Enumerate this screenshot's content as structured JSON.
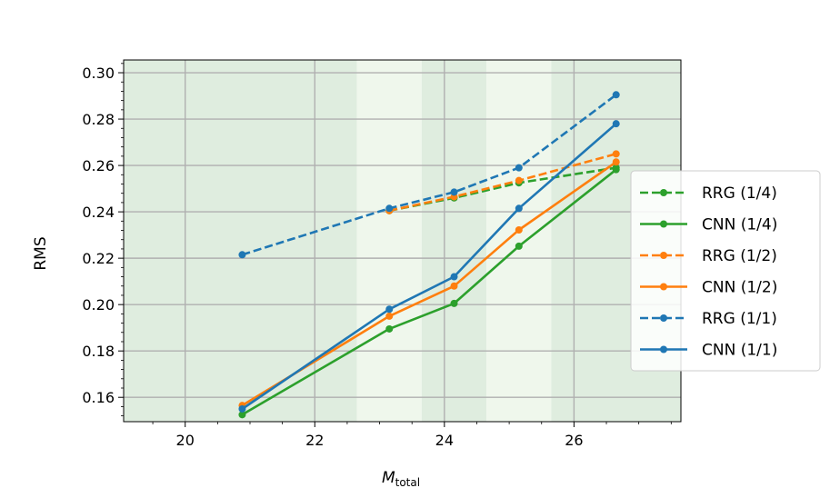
{
  "chart_data": {
    "type": "line",
    "title": "",
    "xlabel": "M",
    "xlabel_sub": "total",
    "ylabel": "RMS",
    "xlim": [
      19.05,
      27.65
    ],
    "ylim": [
      0.1495,
      0.3055
    ],
    "xticks": [
      20,
      22,
      24,
      26
    ],
    "yticks": [
      0.16,
      0.18,
      0.2,
      0.22,
      0.24,
      0.26,
      0.28,
      0.3
    ],
    "ytick_labels": [
      "0.16",
      "0.18",
      "0.20",
      "0.22",
      "0.24",
      "0.26",
      "0.28",
      "0.30"
    ],
    "grid": true,
    "legend_position": "right",
    "background_bands": [
      {
        "from": 19.05,
        "to": 22.65,
        "color": "#dfeddf"
      },
      {
        "from": 22.65,
        "to": 23.65,
        "color": "#eff7ec"
      },
      {
        "from": 23.65,
        "to": 24.65,
        "color": "#dfeddf"
      },
      {
        "from": 24.65,
        "to": 25.65,
        "color": "#eff7ec"
      },
      {
        "from": 25.65,
        "to": 27.65,
        "color": "#dfeddf"
      }
    ],
    "series": [
      {
        "name": "RRG (1/4)",
        "color": "#2ca02c",
        "dashed": true,
        "x": [
          23.15,
          24.15,
          25.15,
          26.65
        ],
        "y": [
          0.2405,
          0.246,
          0.2525,
          0.259
        ]
      },
      {
        "name": "CNN (1/4)",
        "color": "#2ca02c",
        "dashed": false,
        "x": [
          20.88,
          23.15,
          24.15,
          25.15,
          26.65
        ],
        "y": [
          0.1525,
          0.1895,
          0.2005,
          0.2252,
          0.2582
        ]
      },
      {
        "name": "RRG (1/2)",
        "color": "#ff7f0e",
        "dashed": true,
        "x": [
          23.15,
          24.15,
          25.15,
          26.65
        ],
        "y": [
          0.2405,
          0.2465,
          0.2535,
          0.265
        ]
      },
      {
        "name": "CNN (1/2)",
        "color": "#ff7f0e",
        "dashed": false,
        "x": [
          20.88,
          23.15,
          24.15,
          25.15,
          26.65
        ],
        "y": [
          0.1565,
          0.195,
          0.208,
          0.2322,
          0.2615
        ]
      },
      {
        "name": "RRG (1/1)",
        "color": "#1f77b4",
        "dashed": true,
        "x": [
          20.88,
          23.15,
          24.15,
          25.15,
          26.65
        ],
        "y": [
          0.2215,
          0.2415,
          0.2485,
          0.259,
          0.2905
        ]
      },
      {
        "name": "CNN (1/1)",
        "color": "#1f77b4",
        "dashed": false,
        "x": [
          20.88,
          23.15,
          24.15,
          25.15,
          26.65
        ],
        "y": [
          0.155,
          0.198,
          0.212,
          0.2415,
          0.278
        ]
      }
    ]
  }
}
